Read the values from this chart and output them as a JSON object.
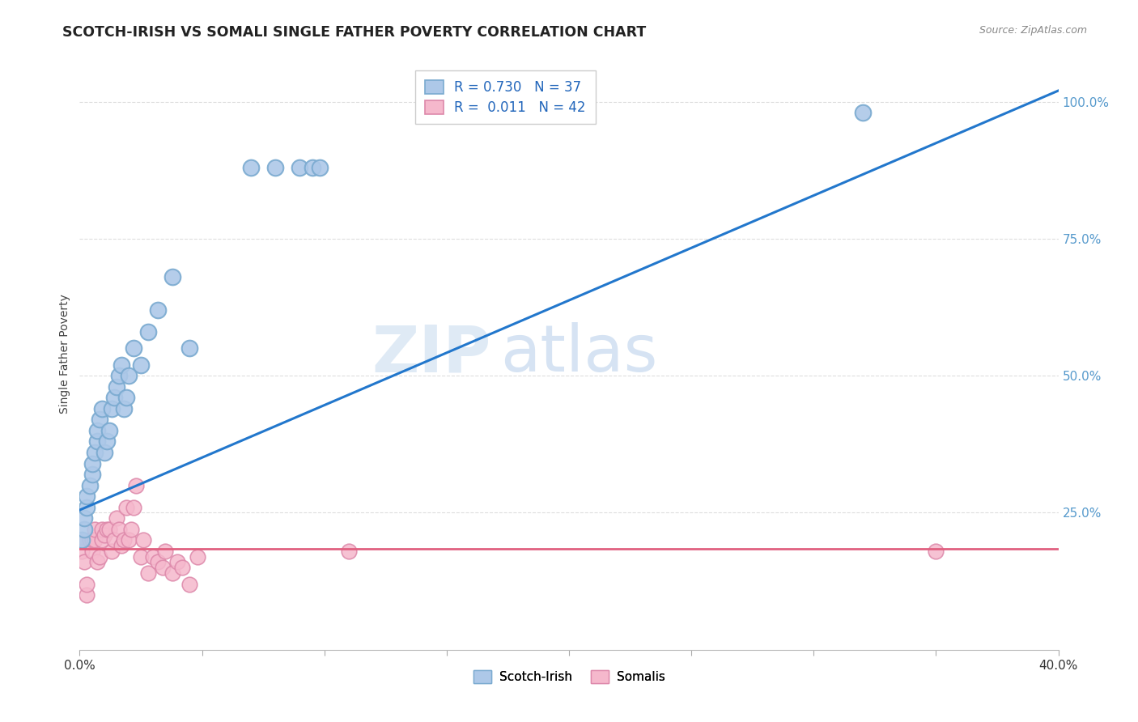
{
  "title": "SCOTCH-IRISH VS SOMALI SINGLE FATHER POVERTY CORRELATION CHART",
  "source": "Source: ZipAtlas.com",
  "ylabel": "Single Father Poverty",
  "right_yticks": [
    "100.0%",
    "75.0%",
    "50.0%",
    "25.0%"
  ],
  "right_ytick_vals": [
    1.0,
    0.75,
    0.5,
    0.25
  ],
  "scotch_irish_R": "0.730",
  "scotch_irish_N": "37",
  "somali_R": "0.011",
  "somali_N": "42",
  "scotch_irish_color": "#adc8e8",
  "scotch_irish_edge": "#7aaad0",
  "scotch_irish_line_color": "#2277cc",
  "somali_color": "#f5b8cc",
  "somali_edge": "#dd88aa",
  "somali_line_color": "#e06080",
  "watermark_zip_color": "#d0dff0",
  "watermark_atlas_color": "#c8d8ec",
  "background_color": "#ffffff",
  "grid_color": "#dddddd",
  "xlim": [
    0.0,
    0.4
  ],
  "ylim": [
    0.0,
    1.08
  ],
  "scotch_irish_x": [
    0.001,
    0.002,
    0.002,
    0.003,
    0.003,
    0.004,
    0.005,
    0.005,
    0.006,
    0.007,
    0.007,
    0.008,
    0.009,
    0.01,
    0.011,
    0.012,
    0.013,
    0.014,
    0.015,
    0.016,
    0.017,
    0.018,
    0.019,
    0.02,
    0.022,
    0.025,
    0.028,
    0.032,
    0.038,
    0.045,
    0.07,
    0.08,
    0.09,
    0.095,
    0.098,
    0.19,
    0.32
  ],
  "scotch_irish_y": [
    0.2,
    0.22,
    0.24,
    0.26,
    0.28,
    0.3,
    0.32,
    0.34,
    0.36,
    0.38,
    0.4,
    0.42,
    0.44,
    0.36,
    0.38,
    0.4,
    0.44,
    0.46,
    0.48,
    0.5,
    0.52,
    0.44,
    0.46,
    0.5,
    0.55,
    0.52,
    0.58,
    0.62,
    0.68,
    0.55,
    0.88,
    0.88,
    0.88,
    0.88,
    0.88,
    0.98,
    0.98
  ],
  "somali_x": [
    0.001,
    0.001,
    0.002,
    0.003,
    0.003,
    0.004,
    0.005,
    0.005,
    0.006,
    0.006,
    0.007,
    0.008,
    0.009,
    0.009,
    0.01,
    0.011,
    0.012,
    0.013,
    0.014,
    0.015,
    0.016,
    0.017,
    0.018,
    0.019,
    0.02,
    0.021,
    0.022,
    0.023,
    0.025,
    0.026,
    0.028,
    0.03,
    0.032,
    0.034,
    0.035,
    0.038,
    0.04,
    0.042,
    0.045,
    0.048,
    0.11,
    0.35
  ],
  "somali_y": [
    0.18,
    0.2,
    0.16,
    0.1,
    0.12,
    0.2,
    0.18,
    0.2,
    0.2,
    0.22,
    0.16,
    0.17,
    0.2,
    0.22,
    0.21,
    0.22,
    0.22,
    0.18,
    0.2,
    0.24,
    0.22,
    0.19,
    0.2,
    0.26,
    0.2,
    0.22,
    0.26,
    0.3,
    0.17,
    0.2,
    0.14,
    0.17,
    0.16,
    0.15,
    0.18,
    0.14,
    0.16,
    0.15,
    0.12,
    0.17,
    0.18,
    0.18
  ],
  "si_line_x0": 0.0,
  "si_line_y0": 0.255,
  "si_line_x1": 0.4,
  "si_line_y1": 1.02,
  "som_line_x0": 0.0,
  "som_line_y0": 0.185,
  "som_line_x1": 0.4,
  "som_line_y1": 0.185
}
